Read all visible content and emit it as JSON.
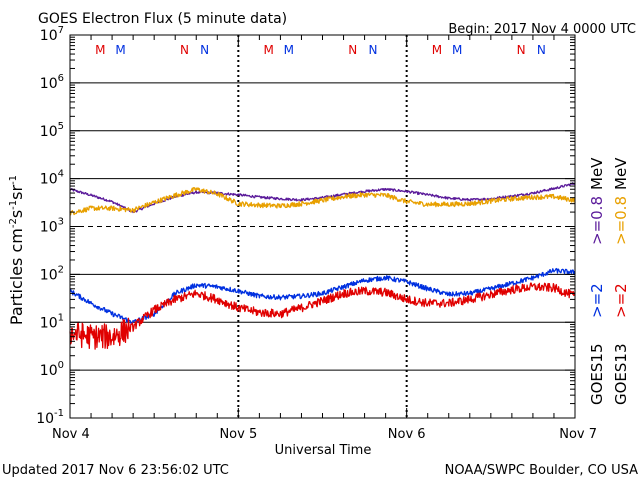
{
  "header": {
    "title": "GOES Electron Flux (5 minute data)",
    "begin": "Begin: 2017 Nov 4 0000 UTC"
  },
  "footer": {
    "updated": "Updated 2017 Nov  6 23:56:02 UTC",
    "credit": "NOAA/SWPC Boulder, CO USA"
  },
  "colors": {
    "goes15_high": "#5a1a9a",
    "goes13_high": "#e8a000",
    "goes15_low": "#0030e0",
    "goes13_low": "#e00000",
    "marker_m_red": "#e00000",
    "marker_blue": "#0030e0"
  },
  "legend": {
    "placement": "right",
    "goes15": "GOES15",
    "goes13": "GOES13",
    "g15_low": ">=2",
    "g13_low": ">=2",
    "g15_high": ">=0.8",
    "g13_high": ">=0.8",
    "unit": "MeV"
  },
  "markers": [
    {
      "label": "M",
      "color": "red",
      "day": 0.18
    },
    {
      "label": "M",
      "color": "blue",
      "day": 0.3
    },
    {
      "label": "N",
      "color": "red",
      "day": 0.68
    },
    {
      "label": "N",
      "color": "blue",
      "day": 0.8
    },
    {
      "label": "M",
      "color": "red",
      "day": 1.18
    },
    {
      "label": "M",
      "color": "blue",
      "day": 1.3
    },
    {
      "label": "N",
      "color": "red",
      "day": 1.68
    },
    {
      "label": "N",
      "color": "blue",
      "day": 1.8
    },
    {
      "label": "M",
      "color": "red",
      "day": 2.18
    },
    {
      "label": "M",
      "color": "blue",
      "day": 2.3
    },
    {
      "label": "N",
      "color": "red",
      "day": 2.68
    },
    {
      "label": "N",
      "color": "blue",
      "day": 2.8
    }
  ],
  "chart_data": {
    "type": "line",
    "title": "GOES Electron Flux (5 minute data)",
    "xlabel": "Universal Time",
    "ylabel": "Particles cm-2s-1sr-1",
    "yscale": "log",
    "ylim": [
      0.1,
      10000000
    ],
    "xlim": [
      "2017 Nov 4 00:00",
      "2017 Nov 7 00:00"
    ],
    "x_ticks": [
      "Nov 4",
      "Nov 5",
      "Nov 6",
      "Nov 7"
    ],
    "y_ticks": [
      {
        "base": "10",
        "exp": "-1"
      },
      {
        "base": "10",
        "exp": "0"
      },
      {
        "base": "10",
        "exp": "1"
      },
      {
        "base": "10",
        "exp": "2"
      },
      {
        "base": "10",
        "exp": "3"
      },
      {
        "base": "10",
        "exp": "4"
      },
      {
        "base": "10",
        "exp": "5"
      },
      {
        "base": "10",
        "exp": "6"
      },
      {
        "base": "10",
        "exp": "7"
      }
    ],
    "threshold_line": 1000,
    "grid": "horizontal at decades",
    "x": [
      "Nov 4 00:00",
      "Nov 4 03:00",
      "Nov 4 06:00",
      "Nov 4 09:00",
      "Nov 4 12:00",
      "Nov 4 15:00",
      "Nov 4 18:00",
      "Nov 4 21:00",
      "Nov 5 00:00",
      "Nov 5 03:00",
      "Nov 5 06:00",
      "Nov 5 09:00",
      "Nov 5 12:00",
      "Nov 5 15:00",
      "Nov 5 18:00",
      "Nov 5 21:00",
      "Nov 6 00:00",
      "Nov 6 03:00",
      "Nov 6 06:00",
      "Nov 6 09:00",
      "Nov 6 12:00",
      "Nov 6 15:00",
      "Nov 6 18:00",
      "Nov 6 21:00",
      "Nov 7 00:00"
    ],
    "series": [
      {
        "name": "GOES15 >=0.8 MeV",
        "color_key": "goes15_high",
        "values": [
          6000,
          4500,
          3300,
          2000,
          3000,
          4200,
          5200,
          5000,
          4600,
          4100,
          3800,
          3600,
          4000,
          4700,
          5400,
          6000,
          5400,
          4600,
          3900,
          3600,
          3800,
          4300,
          5000,
          6200,
          8000
        ]
      },
      {
        "name": "GOES13 >=0.8 MeV",
        "color_key": "goes13_high",
        "values": [
          1900,
          2400,
          2400,
          2200,
          3200,
          4500,
          6000,
          4800,
          3000,
          2800,
          2700,
          3000,
          3500,
          4200,
          4600,
          4500,
          3300,
          2900,
          2900,
          3000,
          3400,
          3800,
          4100,
          4200,
          3500
        ]
      },
      {
        "name": "GOES15 >=2 MeV",
        "color_key": "goes15_low",
        "values": [
          45,
          25,
          15,
          10,
          15,
          40,
          60,
          55,
          45,
          35,
          33,
          35,
          40,
          55,
          75,
          85,
          70,
          50,
          38,
          40,
          50,
          65,
          85,
          120,
          110
        ]
      },
      {
        "name": "GOES13 >=2 MeV",
        "color_key": "goes13_low",
        "values": [
          6,
          5,
          5,
          8,
          18,
          30,
          40,
          30,
          20,
          16,
          15,
          20,
          28,
          40,
          45,
          42,
          30,
          25,
          25,
          30,
          38,
          48,
          55,
          52,
          35
        ]
      }
    ]
  }
}
